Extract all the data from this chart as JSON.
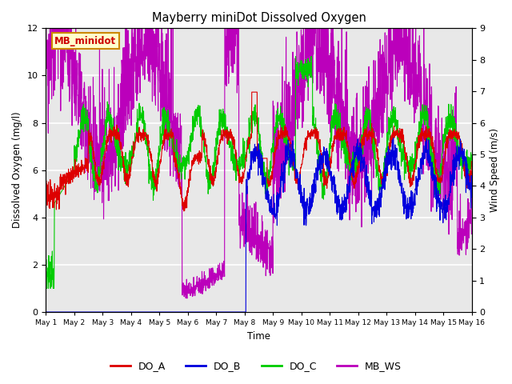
{
  "title": "Mayberry miniDot Dissolved Oxygen",
  "xlabel": "Time",
  "ylabel_left": "Dissolved Oxygen (mg/l)",
  "ylabel_right": "Wind Speed (m/s)",
  "ylim_left": [
    0,
    12
  ],
  "ylim_right": [
    0.0,
    9.0
  ],
  "yticks_left": [
    0,
    2,
    4,
    6,
    8,
    10,
    12
  ],
  "yticks_right": [
    0.0,
    1.0,
    2.0,
    3.0,
    4.0,
    5.0,
    6.0,
    7.0,
    8.0,
    9.0
  ],
  "colors": {
    "DO_A": "#dd0000",
    "DO_B": "#0000dd",
    "DO_C": "#00cc00",
    "MB_WS": "#bb00bb"
  },
  "annotation_text": "MB_minidot",
  "annotation_color": "#cc0000",
  "annotation_bg": "#ffffcc",
  "annotation_border": "#cc8800",
  "bg_color": "#e8e8e8",
  "grid_color": "#ffffff",
  "linewidth": 0.8,
  "fig_w": 6.4,
  "fig_h": 4.8,
  "dpi": 100
}
